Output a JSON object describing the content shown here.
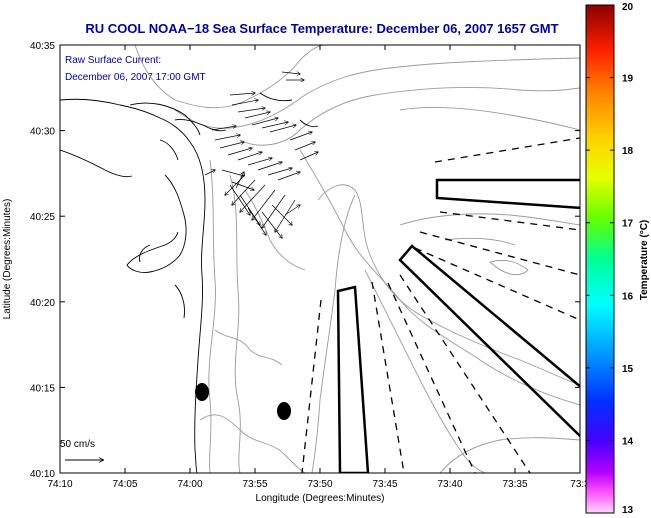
{
  "chart_data": {
    "type": "map",
    "title": "RU COOL  NOAA−18  Sea Surface Temperature:  December 06, 2007 1657 GMT",
    "annotations": [
      "Raw Surface Current:",
      "December 06, 2007 17:00 GMT"
    ],
    "xlabel": "Longitude (Degrees:Minutes)",
    "ylabel": "Latitude (Degrees:Minutes)",
    "x_ticks": [
      "74:10",
      "74:05",
      "74:00",
      "73:55",
      "73:50",
      "73:45",
      "73:40",
      "73:35",
      "73:3"
    ],
    "y_ticks": [
      "40:10",
      "40:15",
      "40:20",
      "40:25",
      "40:30",
      "40:35"
    ],
    "xlim": [
      -74.1667,
      -73.5
    ],
    "ylim": [
      40.1667,
      40.5833
    ],
    "scale_arrow_label": "50 cm/s",
    "colorbar": {
      "label": "Temperature (°C)",
      "min": 13,
      "max": 20,
      "ticks": [
        "13",
        "14",
        "15",
        "16",
        "17",
        "18",
        "19",
        "20"
      ]
    },
    "grid": false
  },
  "colors": {
    "title": "#0000b4",
    "annotation": "#0000b4",
    "axis": "#000000",
    "contour": "#9a9a9a",
    "coast": "#000000"
  }
}
